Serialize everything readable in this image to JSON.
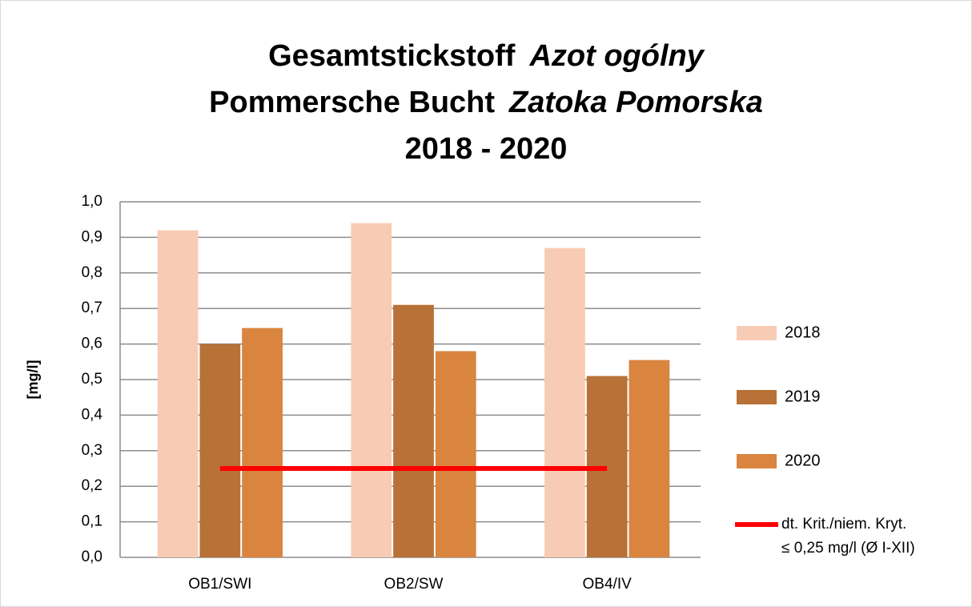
{
  "chart_data": {
    "type": "bar",
    "title": [
      [
        "Gesamtstickstoff",
        "Azot ogólny"
      ],
      [
        "Pommersche Bucht",
        "Zatoka Pomorska"
      ],
      [
        "2018 - 2020"
      ]
    ],
    "ylabel": "[mg/l]",
    "categories": [
      "OB1/SWI",
      "OB2/SW",
      "OB4/IV"
    ],
    "series": [
      {
        "name": "2018",
        "color": "#f8cbb4",
        "values": [
          0.92,
          0.94,
          0.87
        ]
      },
      {
        "name": "2019",
        "color": "#b87136",
        "values": [
          0.6,
          0.71,
          0.51
        ]
      },
      {
        "name": "2020",
        "color": "#d9843f",
        "values": [
          0.645,
          0.58,
          0.555
        ]
      }
    ],
    "reference_line": {
      "name": [
        "dt. Krit./niem. Kryt.",
        "≤ 0,25 mg/l (Ø I-XII)"
      ],
      "color": "#ff0000",
      "values": [
        0.25,
        0.25,
        0.25
      ]
    },
    "ylim": [
      0,
      1
    ],
    "yticks": [
      {
        "value": 0,
        "label": "0,0"
      },
      {
        "value": 0.1,
        "label": "0,1"
      },
      {
        "value": 0.2,
        "label": "0,2"
      },
      {
        "value": 0.3,
        "label": "0,3"
      },
      {
        "value": 0.4,
        "label": "0,4"
      },
      {
        "value": 0.5,
        "label": "0,5"
      },
      {
        "value": 0.6,
        "label": "0,6"
      },
      {
        "value": 0.7,
        "label": "0,7"
      },
      {
        "value": 0.8,
        "label": "0,8"
      },
      {
        "value": 0.9,
        "label": "0,9"
      },
      {
        "value": 1,
        "label": "1,0"
      }
    ],
    "grid": true,
    "legend": "right"
  }
}
